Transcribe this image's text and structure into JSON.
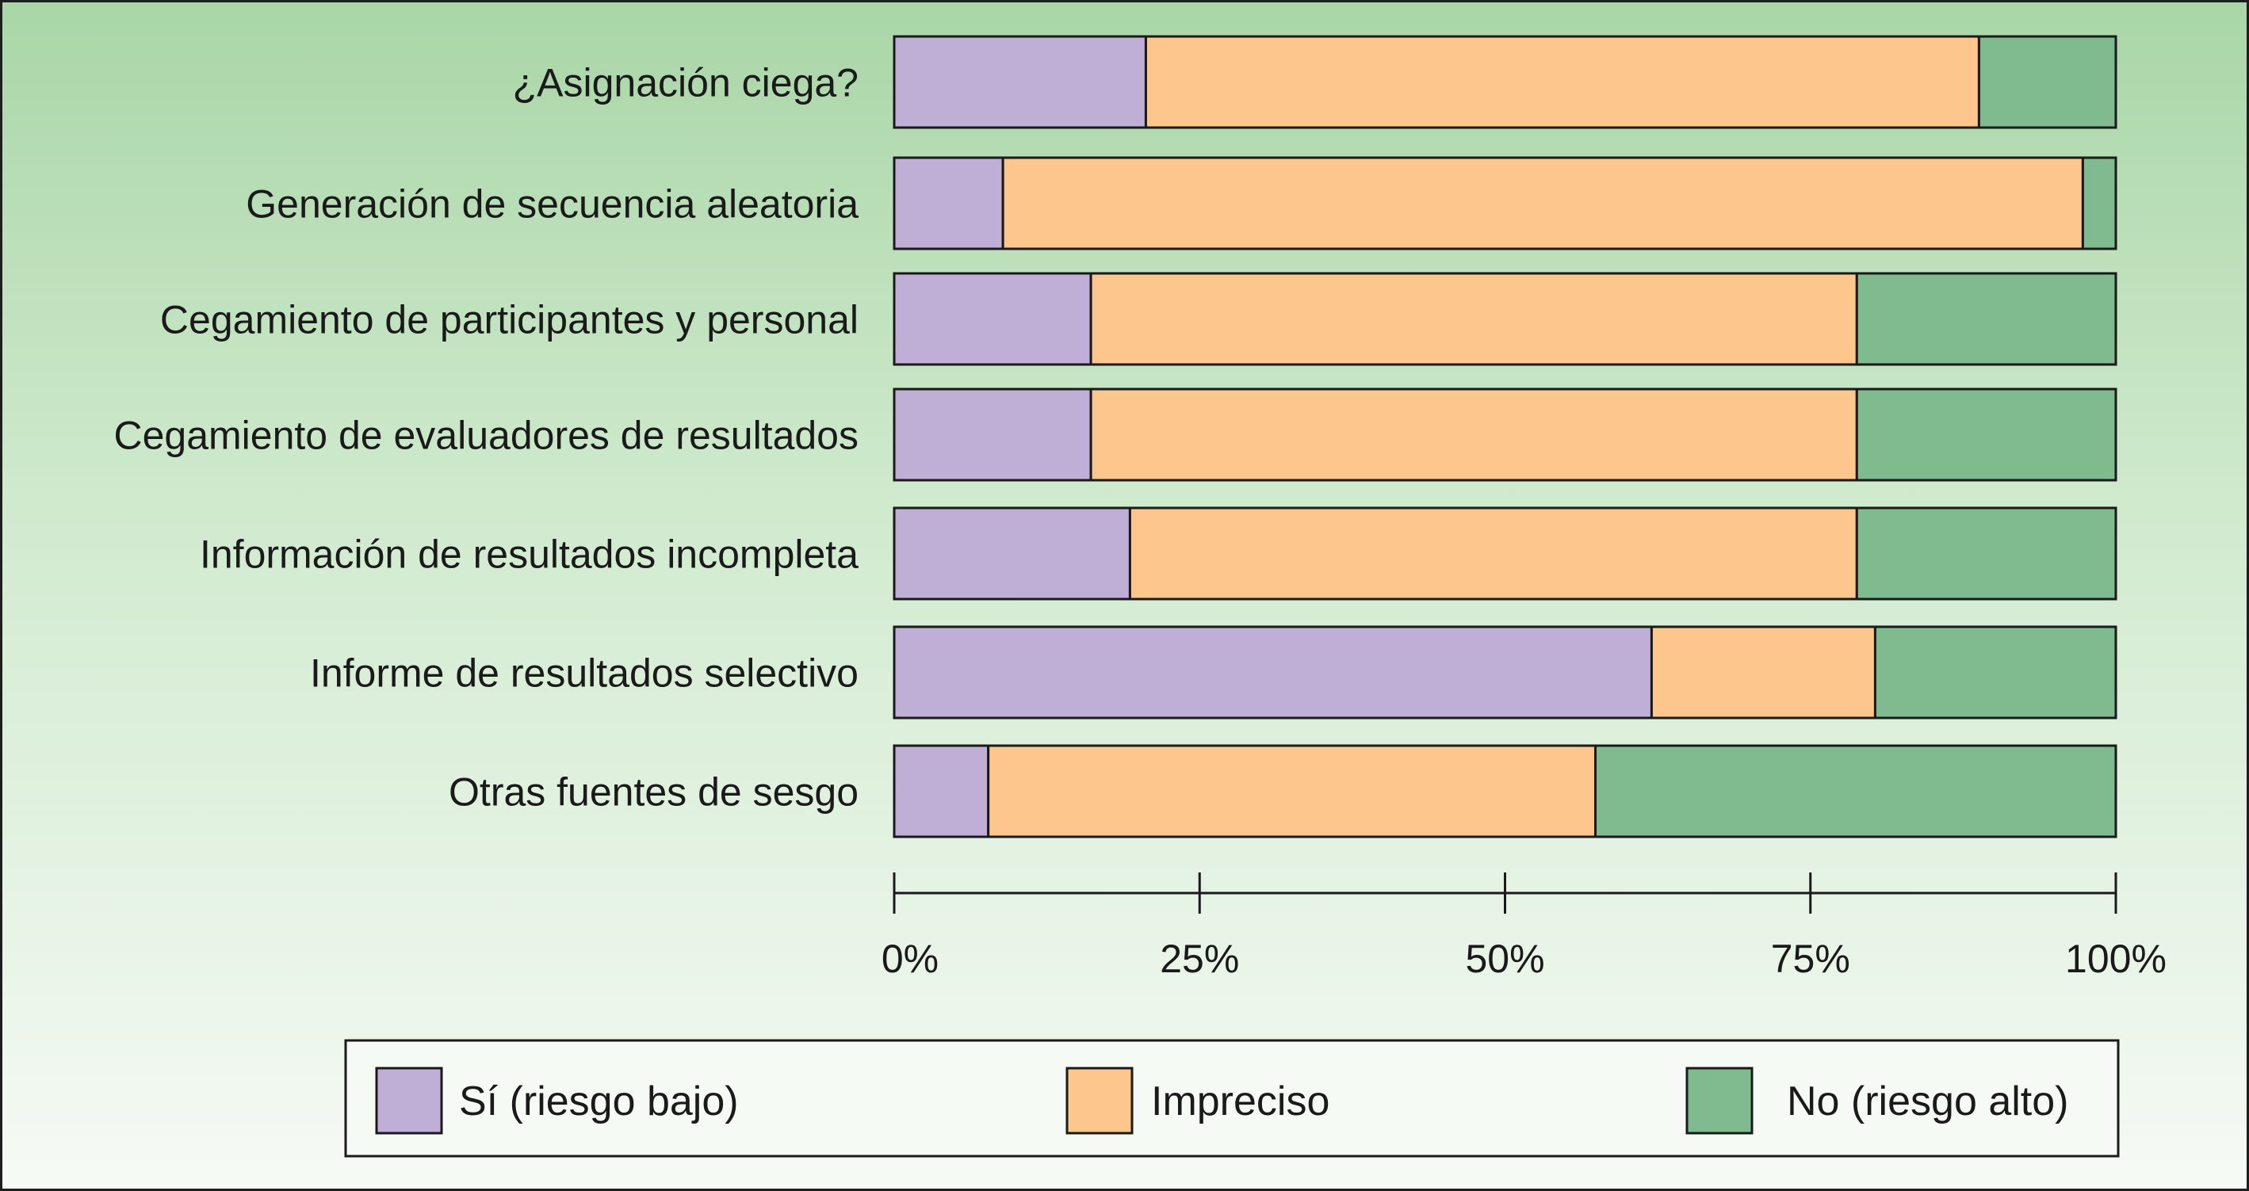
{
  "chart_data": {
    "type": "bar",
    "orientation": "horizontal",
    "stacked": true,
    "categories": [
      "¿Asignación ciega?",
      "Generación de secuencia aleatoria",
      "Cegamiento de participantes y personal",
      "Cegamiento de evaluadores de resultados",
      "Información de resultados incompleta",
      "Informe de resultados selectivo",
      "Otras fuentes de sesgo"
    ],
    "series": [
      {
        "name": "Sí (riesgo bajo)",
        "color": "#bfaed5",
        "values": [
          20.6,
          8.9,
          16.1,
          16.1,
          19.3,
          62.0,
          7.7
        ]
      },
      {
        "name": "Impreciso",
        "color": "#fdc68c",
        "values": [
          68.2,
          88.4,
          62.7,
          62.7,
          59.5,
          18.3,
          49.7
        ]
      },
      {
        "name": "No (riesgo alto)",
        "color": "#7fbb8f",
        "values": [
          11.2,
          2.7,
          21.2,
          21.2,
          21.2,
          19.7,
          42.6
        ]
      }
    ],
    "xlim": [
      0,
      100
    ],
    "xticks": [
      0,
      25,
      50,
      75,
      100
    ],
    "xtick_labels": [
      "0%",
      "25%",
      "50%",
      "75%",
      "100%"
    ],
    "legend_position": "bottom",
    "grid": false
  }
}
